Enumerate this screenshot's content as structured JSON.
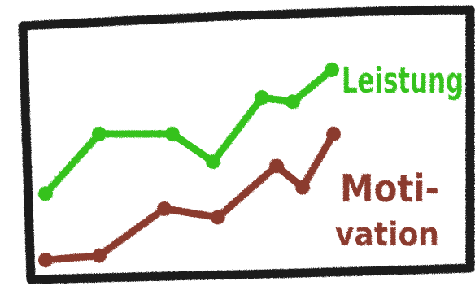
{
  "chart_data": {
    "type": "line",
    "title": "",
    "xlabel": "",
    "ylabel": "",
    "x": [
      1,
      2,
      3,
      4,
      5,
      6,
      7
    ],
    "series": [
      {
        "name": "Leistung",
        "color": "#35c21e",
        "values": [
          62,
          118,
          118,
          92,
          152,
          148,
          178
        ]
      },
      {
        "name": "Moti-vation",
        "color": "#8b3a2e",
        "values": [
          0,
          4,
          48,
          40,
          88,
          68,
          118
        ]
      }
    ],
    "colors": {
      "frame": "#1c1c1c",
      "background": "#ffffff"
    }
  },
  "labels": {
    "leistung": "Leistung",
    "motivation_line1": "Moti-",
    "motivation_line2": "vation"
  }
}
